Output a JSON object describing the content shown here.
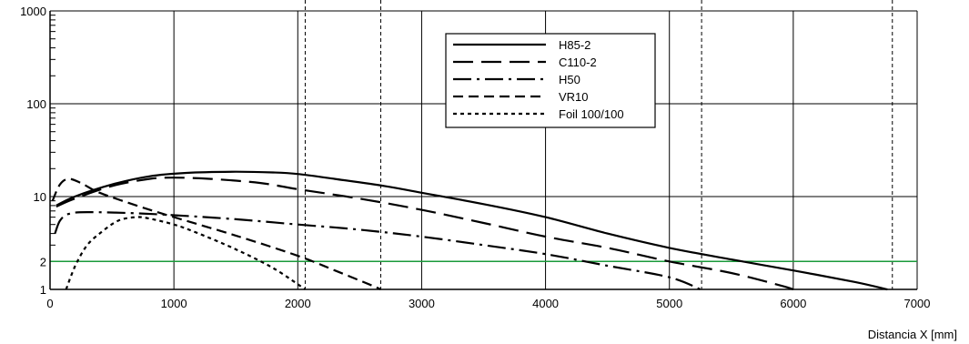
{
  "chart_data": {
    "type": "line",
    "title": "",
    "xlabel": "Distancia X [mm]",
    "ylabel": "",
    "xlim": [
      0,
      7000
    ],
    "ylim": [
      1,
      1000
    ],
    "y_scale": "log",
    "grid": true,
    "legend_position": "top-center",
    "x_ticks": [
      "0",
      "1000",
      "2000",
      "3000",
      "4000",
      "5000",
      "6000",
      "7000"
    ],
    "y_ticks": [
      {
        "value": 1,
        "label": "1"
      },
      {
        "value": 2,
        "label": "2"
      },
      {
        "value": 10,
        "label": "10"
      },
      {
        "value": 100,
        "label": "100"
      },
      {
        "value": 1000,
        "label": "1000"
      }
    ],
    "reference_line": {
      "y": 2,
      "color": "#1a9a3a"
    },
    "vertical_dashed_x": [
      2060,
      2670,
      5260,
      6800
    ],
    "series": [
      {
        "name": "H85-2",
        "dash": "solid",
        "points": [
          [
            50,
            8
          ],
          [
            200,
            10
          ],
          [
            500,
            13.5
          ],
          [
            800,
            16.5
          ],
          [
            1100,
            18
          ],
          [
            1500,
            18.5
          ],
          [
            1800,
            18.2
          ],
          [
            2000,
            17.5
          ],
          [
            2300,
            15.5
          ],
          [
            2700,
            13
          ],
          [
            3000,
            11
          ],
          [
            3500,
            8.3
          ],
          [
            4000,
            6
          ],
          [
            4500,
            4
          ],
          [
            5000,
            2.8
          ],
          [
            5500,
            2.1
          ],
          [
            6000,
            1.6
          ],
          [
            6500,
            1.2
          ],
          [
            6760,
            1.0
          ]
        ]
      },
      {
        "name": "C110-2",
        "dash": "long-dash",
        "points": [
          [
            50,
            7.8
          ],
          [
            200,
            9.5
          ],
          [
            500,
            13
          ],
          [
            800,
            15.5
          ],
          [
            1000,
            16
          ],
          [
            1300,
            15.5
          ],
          [
            1700,
            14
          ],
          [
            2000,
            12
          ],
          [
            2500,
            9.5
          ],
          [
            3000,
            7.2
          ],
          [
            3500,
            5.2
          ],
          [
            4000,
            3.7
          ],
          [
            4500,
            2.8
          ],
          [
            5000,
            2.0
          ],
          [
            5500,
            1.5
          ],
          [
            5900,
            1.1
          ],
          [
            6000,
            1.0
          ]
        ]
      },
      {
        "name": "H50",
        "dash": "dash-dot",
        "points": [
          [
            40,
            4
          ],
          [
            80,
            5.5
          ],
          [
            150,
            6.5
          ],
          [
            300,
            6.8
          ],
          [
            700,
            6.6
          ],
          [
            1000,
            6.3
          ],
          [
            1500,
            5.7
          ],
          [
            2000,
            5.0
          ],
          [
            2500,
            4.4
          ],
          [
            3000,
            3.7
          ],
          [
            3500,
            3.0
          ],
          [
            4000,
            2.4
          ],
          [
            4500,
            1.8
          ],
          [
            5000,
            1.35
          ],
          [
            5250,
            1.0
          ]
        ]
      },
      {
        "name": "VR10",
        "dash": "short-dash",
        "points": [
          [
            20,
            9
          ],
          [
            80,
            13.5
          ],
          [
            150,
            15.5
          ],
          [
            250,
            14
          ],
          [
            400,
            11
          ],
          [
            700,
            8
          ],
          [
            1000,
            6
          ],
          [
            1500,
            3.8
          ],
          [
            2000,
            2.3
          ],
          [
            2300,
            1.6
          ],
          [
            2600,
            1.1
          ],
          [
            2670,
            1.0
          ]
        ]
      },
      {
        "name": "Foil 100/100",
        "dash": "dotted",
        "points": [
          [
            130,
            1.0
          ],
          [
            170,
            1.4
          ],
          [
            220,
            2.0
          ],
          [
            300,
            3.0
          ],
          [
            400,
            4.0
          ],
          [
            550,
            5.5
          ],
          [
            700,
            6.0
          ],
          [
            800,
            5.8
          ],
          [
            1000,
            5.0
          ],
          [
            1200,
            4.0
          ],
          [
            1500,
            2.7
          ],
          [
            1800,
            1.7
          ],
          [
            2060,
            1.0
          ]
        ]
      }
    ]
  }
}
